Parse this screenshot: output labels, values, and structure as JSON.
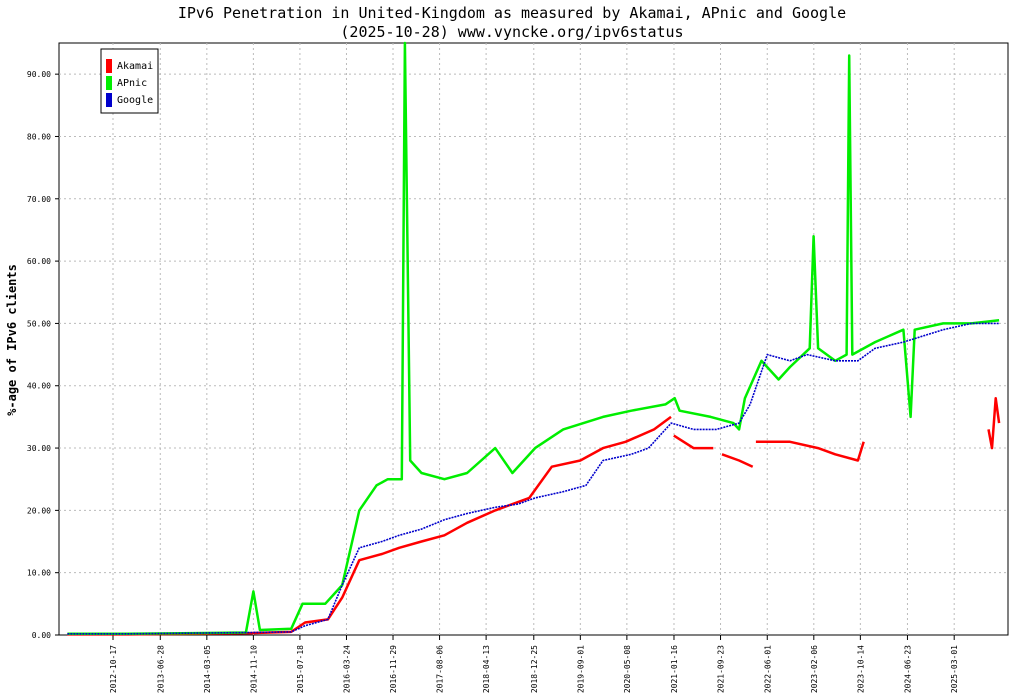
{
  "chart_data": {
    "type": "line",
    "title": "IPv6 Penetration in United-Kingdom as measured by Akamai, APnic and Google",
    "subtitle": "(2025-10-28) www.vyncke.org/ipv6status",
    "ylabel": "%-age of IPv6 clients",
    "xlabel": "",
    "ylim": [
      0,
      95
    ],
    "yticks": [
      "0.00",
      "10.00",
      "20.00",
      "30.00",
      "40.00",
      "50.00",
      "60.00",
      "70.00",
      "80.00",
      "90.00"
    ],
    "xticks": [
      "2012-10-17",
      "2013-06-28",
      "2014-03-05",
      "2014-11-10",
      "2015-07-18",
      "2016-03-24",
      "2016-11-29",
      "2017-08-06",
      "2018-04-13",
      "2018-12-25",
      "2019-09-01",
      "2020-05-08",
      "2021-01-16",
      "2021-09-23",
      "2022-06-01",
      "2023-02-06",
      "2023-10-14",
      "2024-06-23",
      "2025-03-01"
    ],
    "xlim": [
      "2012-01-01",
      "2025-12-15"
    ],
    "grid": true,
    "legend": "top-left",
    "series": [
      {
        "name": "Akamai",
        "color": "#ff0000",
        "x": [
          "2012-02-15",
          "2013-01-01",
          "2014-01-01",
          "2014-11-01",
          "2015-06-01",
          "2015-08-15",
          "2015-12-15",
          "2016-03-01",
          "2016-06-01",
          "2016-10-01",
          "2017-01-01",
          "2017-05-01",
          "2017-09-01",
          "2018-01-01",
          "2018-06-01",
          "2018-12-01",
          "2019-04-01",
          "2019-09-01",
          "2020-01-01",
          "2020-05-01",
          "2020-10-01",
          "2020-12-31",
          null,
          "2021-01-15",
          "2021-05-01",
          "2021-08-15",
          null,
          "2021-10-01",
          "2022-01-01",
          "2022-03-15",
          null,
          "2022-04-01",
          "2022-10-01",
          "2023-03-01",
          "2023-06-01",
          "2023-10-01",
          "2023-11-01",
          null,
          "2025-09-01",
          "2025-09-20",
          "2025-10-10",
          "2025-10-28"
        ],
        "y": [
          0.1,
          0.1,
          0.2,
          0.3,
          0.5,
          2.0,
          2.5,
          6.0,
          12.0,
          13.0,
          14.0,
          15.0,
          16.0,
          18.0,
          20.0,
          22.0,
          27.0,
          28.0,
          30.0,
          31.0,
          33.0,
          35.0,
          null,
          32.0,
          30.0,
          30.0,
          null,
          29.0,
          28.0,
          27.0,
          null,
          31.0,
          31.0,
          30.0,
          29.0,
          28.0,
          31.0,
          null,
          33.0,
          30.0,
          38.0,
          34.0
        ]
      },
      {
        "name": "APnic",
        "color": "#00ee00",
        "x": [
          "2012-02-15",
          "2013-01-01",
          "2014-01-01",
          "2014-10-01",
          "2014-11-10",
          "2014-12-15",
          "2015-06-01",
          "2015-08-01",
          "2015-12-01",
          "2016-03-01",
          "2016-06-01",
          "2016-09-01",
          "2016-11-01",
          "2017-01-15",
          "2017-02-01",
          "2017-03-01",
          "2017-05-01",
          "2017-09-01",
          "2018-01-01",
          "2018-06-01",
          "2018-09-01",
          "2019-01-01",
          "2019-06-01",
          "2020-01-01",
          "2020-06-01",
          "2020-12-01",
          "2021-01-20",
          "2021-02-15",
          "2021-08-01",
          "2021-12-01",
          "2022-01-01",
          "2022-02-01",
          "2022-05-01",
          "2022-08-01",
          "2022-10-01",
          "2023-01-15",
          "2023-02-05",
          "2023-03-01",
          "2023-06-01",
          "2023-08-01",
          "2023-08-15",
          "2023-09-01",
          "2024-01-01",
          "2024-06-01",
          "2024-07-10",
          "2024-08-01",
          "2025-01-01",
          "2025-06-01",
          "2025-10-28"
        ],
        "y": [
          0.2,
          0.2,
          0.3,
          0.4,
          7.0,
          0.8,
          1.0,
          5.0,
          5.0,
          8.0,
          20.0,
          24.0,
          25.0,
          25.0,
          95.0,
          28.0,
          26.0,
          25.0,
          26.0,
          30.0,
          26.0,
          30.0,
          33.0,
          35.0,
          36.0,
          37.0,
          38.0,
          36.0,
          35.0,
          34.0,
          33.0,
          38.0,
          44.0,
          41.0,
          43.0,
          46.0,
          64.0,
          46.0,
          44.0,
          45.0,
          93.0,
          45.0,
          47.0,
          49.0,
          35.0,
          49.0,
          50.0,
          50.0,
          50.5
        ]
      },
      {
        "name": "Google",
        "color": "#0000cc",
        "dashed": true,
        "x": [
          "2012-02-15",
          "2013-01-01",
          "2014-01-01",
          "2014-11-01",
          "2015-06-01",
          "2015-08-15",
          "2015-12-15",
          "2016-03-01",
          "2016-06-01",
          "2016-10-01",
          "2017-01-01",
          "2017-05-01",
          "2017-09-01",
          "2018-01-01",
          "2018-06-01",
          "2018-10-01",
          "2019-01-01",
          "2019-06-01",
          "2019-10-01",
          "2020-01-01",
          "2020-06-01",
          "2020-09-01",
          "2020-11-01",
          "2021-01-01",
          "2021-05-01",
          "2021-09-01",
          "2022-01-01",
          "2022-03-01",
          "2022-06-01",
          "2022-10-01",
          "2023-01-01",
          "2023-06-01",
          "2023-10-01",
          "2024-01-01",
          "2024-06-01",
          "2025-01-01",
          "2025-06-01",
          "2025-10-28"
        ],
        "y": [
          0.2,
          0.2,
          0.3,
          0.4,
          0.5,
          1.5,
          2.5,
          8.0,
          14.0,
          15.0,
          16.0,
          17.0,
          18.5,
          19.5,
          20.5,
          21.0,
          22.0,
          23.0,
          24.0,
          28.0,
          29.0,
          30.0,
          32.0,
          34.0,
          33.0,
          33.0,
          34.0,
          37.0,
          45.0,
          44.0,
          45.0,
          44.0,
          44.0,
          46.0,
          47.0,
          49.0,
          50.0,
          50.0
        ]
      }
    ]
  }
}
